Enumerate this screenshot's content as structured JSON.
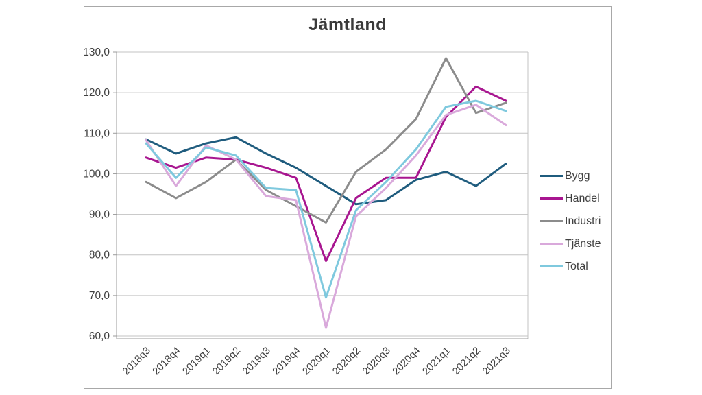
{
  "window": {
    "background": "#ffffff",
    "frame_border_color": "#a8a8a8"
  },
  "chart_data": {
    "type": "line",
    "title": "Jämtland",
    "categories": [
      "2018q3",
      "2018q4",
      "2019q1",
      "2019q2",
      "2019q3",
      "2019q4",
      "2020q1",
      "2020q2",
      "2020q3",
      "2020q4",
      "2021q1",
      "2021q2",
      "2021q3"
    ],
    "series": [
      {
        "name": "Bygg",
        "color": "#1F5C7E",
        "values": [
          108.5,
          105.0,
          107.5,
          109.0,
          105.0,
          101.5,
          97.0,
          92.5,
          93.5,
          98.5,
          100.5,
          97.0,
          102.5
        ]
      },
      {
        "name": "Handel",
        "color": "#A81690",
        "values": [
          104.0,
          101.5,
          104.0,
          103.5,
          101.5,
          99.0,
          78.5,
          94.0,
          99.0,
          99.0,
          114.0,
          121.5,
          118.0
        ]
      },
      {
        "name": "Industri",
        "color": "#8C8C8C",
        "values": [
          98.0,
          94.0,
          98.0,
          103.5,
          96.0,
          92.0,
          88.0,
          100.5,
          106.0,
          113.5,
          128.5,
          115.0,
          117.5
        ]
      },
      {
        "name": "Tjänste",
        "color": "#D9A9DB",
        "values": [
          108.3,
          97.0,
          107.0,
          103.5,
          94.5,
          93.5,
          62.0,
          89.5,
          96.5,
          104.5,
          114.5,
          117.0,
          112.0
        ]
      },
      {
        "name": "Total",
        "color": "#7FC9DE",
        "values": [
          107.5,
          99.0,
          106.5,
          104.5,
          96.5,
          96.0,
          69.5,
          91.0,
          98.0,
          106.0,
          116.5,
          118.0,
          115.5
        ]
      }
    ],
    "ylim": [
      60,
      130
    ],
    "ytick_step": 10,
    "ytick_labels": [
      "60,0",
      "70,0",
      "80,0",
      "90,0",
      "100,0",
      "110,0",
      "120,0",
      "130,0"
    ],
    "grid": true,
    "gridline_color": "#c3c3c3",
    "axis_line_color": "#9b9b9b",
    "tick_label_color": "#404040",
    "legend_position": "right"
  }
}
